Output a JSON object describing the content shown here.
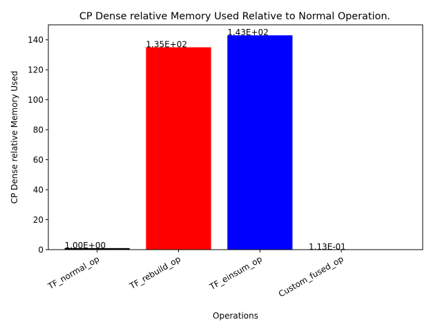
{
  "chart_data": {
    "type": "bar",
    "title": "CP Dense relative Memory Used Relative to Normal Operation.",
    "xlabel": "Operations",
    "ylabel": "CP Dense relative Memory Used",
    "categories": [
      "TF_normal_op",
      "TF_rebuild_op",
      "TF_einsum_op",
      "Custom_fused_op"
    ],
    "values": [
      1.0,
      135.0,
      143.0,
      0.113
    ],
    "data_labels": [
      "1.00E+00",
      "1.35E+02",
      "1.43E+02",
      "1.13E-01"
    ],
    "colors": [
      "#000000",
      "#ff0000",
      "#0000ff",
      "#008000"
    ],
    "ylim": [
      0,
      150
    ],
    "yticks": [
      0,
      20,
      40,
      60,
      80,
      100,
      120,
      140
    ],
    "grid": false,
    "legend": "none"
  }
}
